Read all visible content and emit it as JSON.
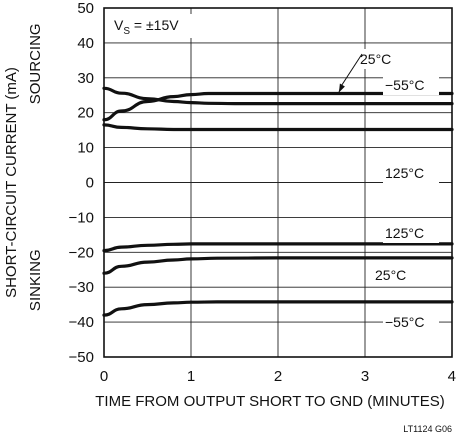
{
  "chart_data": {
    "type": "line",
    "xlabel": "TIME FROM OUTPUT SHORT TO GND (MINUTES)",
    "ylabel": "SHORT-CIRCUIT CURRENT (mA)",
    "xlim": [
      0,
      4
    ],
    "ylim": [
      -50,
      50
    ],
    "xticks": [
      0,
      1,
      2,
      3,
      4
    ],
    "yticks": [
      50,
      40,
      30,
      20,
      10,
      0,
      -10,
      -20,
      -30,
      -40,
      -50
    ],
    "grid": true,
    "condition": "V",
    "condition_sub": "S",
    "condition_rest": " = ±15V",
    "region_labels": {
      "sourcing": "SOURCING",
      "sinking": "SINKING"
    },
    "figure_id": "LT1124 G06",
    "series": [
      {
        "name": "25°C",
        "region": "sourcing",
        "x": [
          0,
          0.2,
          0.5,
          0.8,
          1.0,
          1.2,
          1.5,
          2,
          3,
          4
        ],
        "y": [
          18,
          20.5,
          23.2,
          24.6,
          25.2,
          25.5,
          25.5,
          25.5,
          25.5,
          25.5
        ]
      },
      {
        "name": "−55°C",
        "region": "sourcing",
        "x": [
          0,
          0.2,
          0.5,
          0.8,
          1.0,
          1.2,
          1.5,
          2,
          3,
          4
        ],
        "y": [
          27,
          25.6,
          24,
          23.2,
          22.9,
          22.7,
          22.6,
          22.6,
          22.6,
          22.6
        ]
      },
      {
        "name": "125°C",
        "region": "sourcing",
        "x": [
          0,
          0.2,
          0.5,
          0.8,
          1.0,
          2,
          3,
          4
        ],
        "y": [
          16.5,
          15.8,
          15.4,
          15.2,
          15.2,
          15.2,
          15.2,
          15.2
        ]
      },
      {
        "name": "125°C",
        "region": "sinking",
        "x": [
          0,
          0.2,
          0.5,
          0.8,
          1.0,
          2,
          3,
          4
        ],
        "y": [
          -19.5,
          -18.5,
          -18,
          -17.7,
          -17.6,
          -17.6,
          -17.6,
          -17.6
        ]
      },
      {
        "name": "25°C",
        "region": "sinking",
        "x": [
          0,
          0.2,
          0.5,
          0.8,
          1.0,
          1.3,
          2,
          3,
          4
        ],
        "y": [
          -26,
          -24,
          -22.8,
          -22.2,
          -21.9,
          -21.7,
          -21.6,
          -21.6,
          -21.6
        ]
      },
      {
        "name": "−55°C",
        "region": "sinking",
        "x": [
          0,
          0.2,
          0.5,
          0.8,
          1.0,
          1.3,
          2,
          3,
          4
        ],
        "y": [
          -38,
          -36.2,
          -35,
          -34.5,
          -34.3,
          -34.2,
          -34.2,
          -34.2,
          -34.2
        ]
      }
    ],
    "annotations": [
      {
        "text": "25°C",
        "series": 0
      },
      {
        "text": "−55°C",
        "series": 1
      },
      {
        "text": "125°C",
        "series": 2
      },
      {
        "text": "125°C",
        "series": 3
      },
      {
        "text": "25°C",
        "series": 4
      },
      {
        "text": "−55°C",
        "series": 5
      }
    ]
  }
}
